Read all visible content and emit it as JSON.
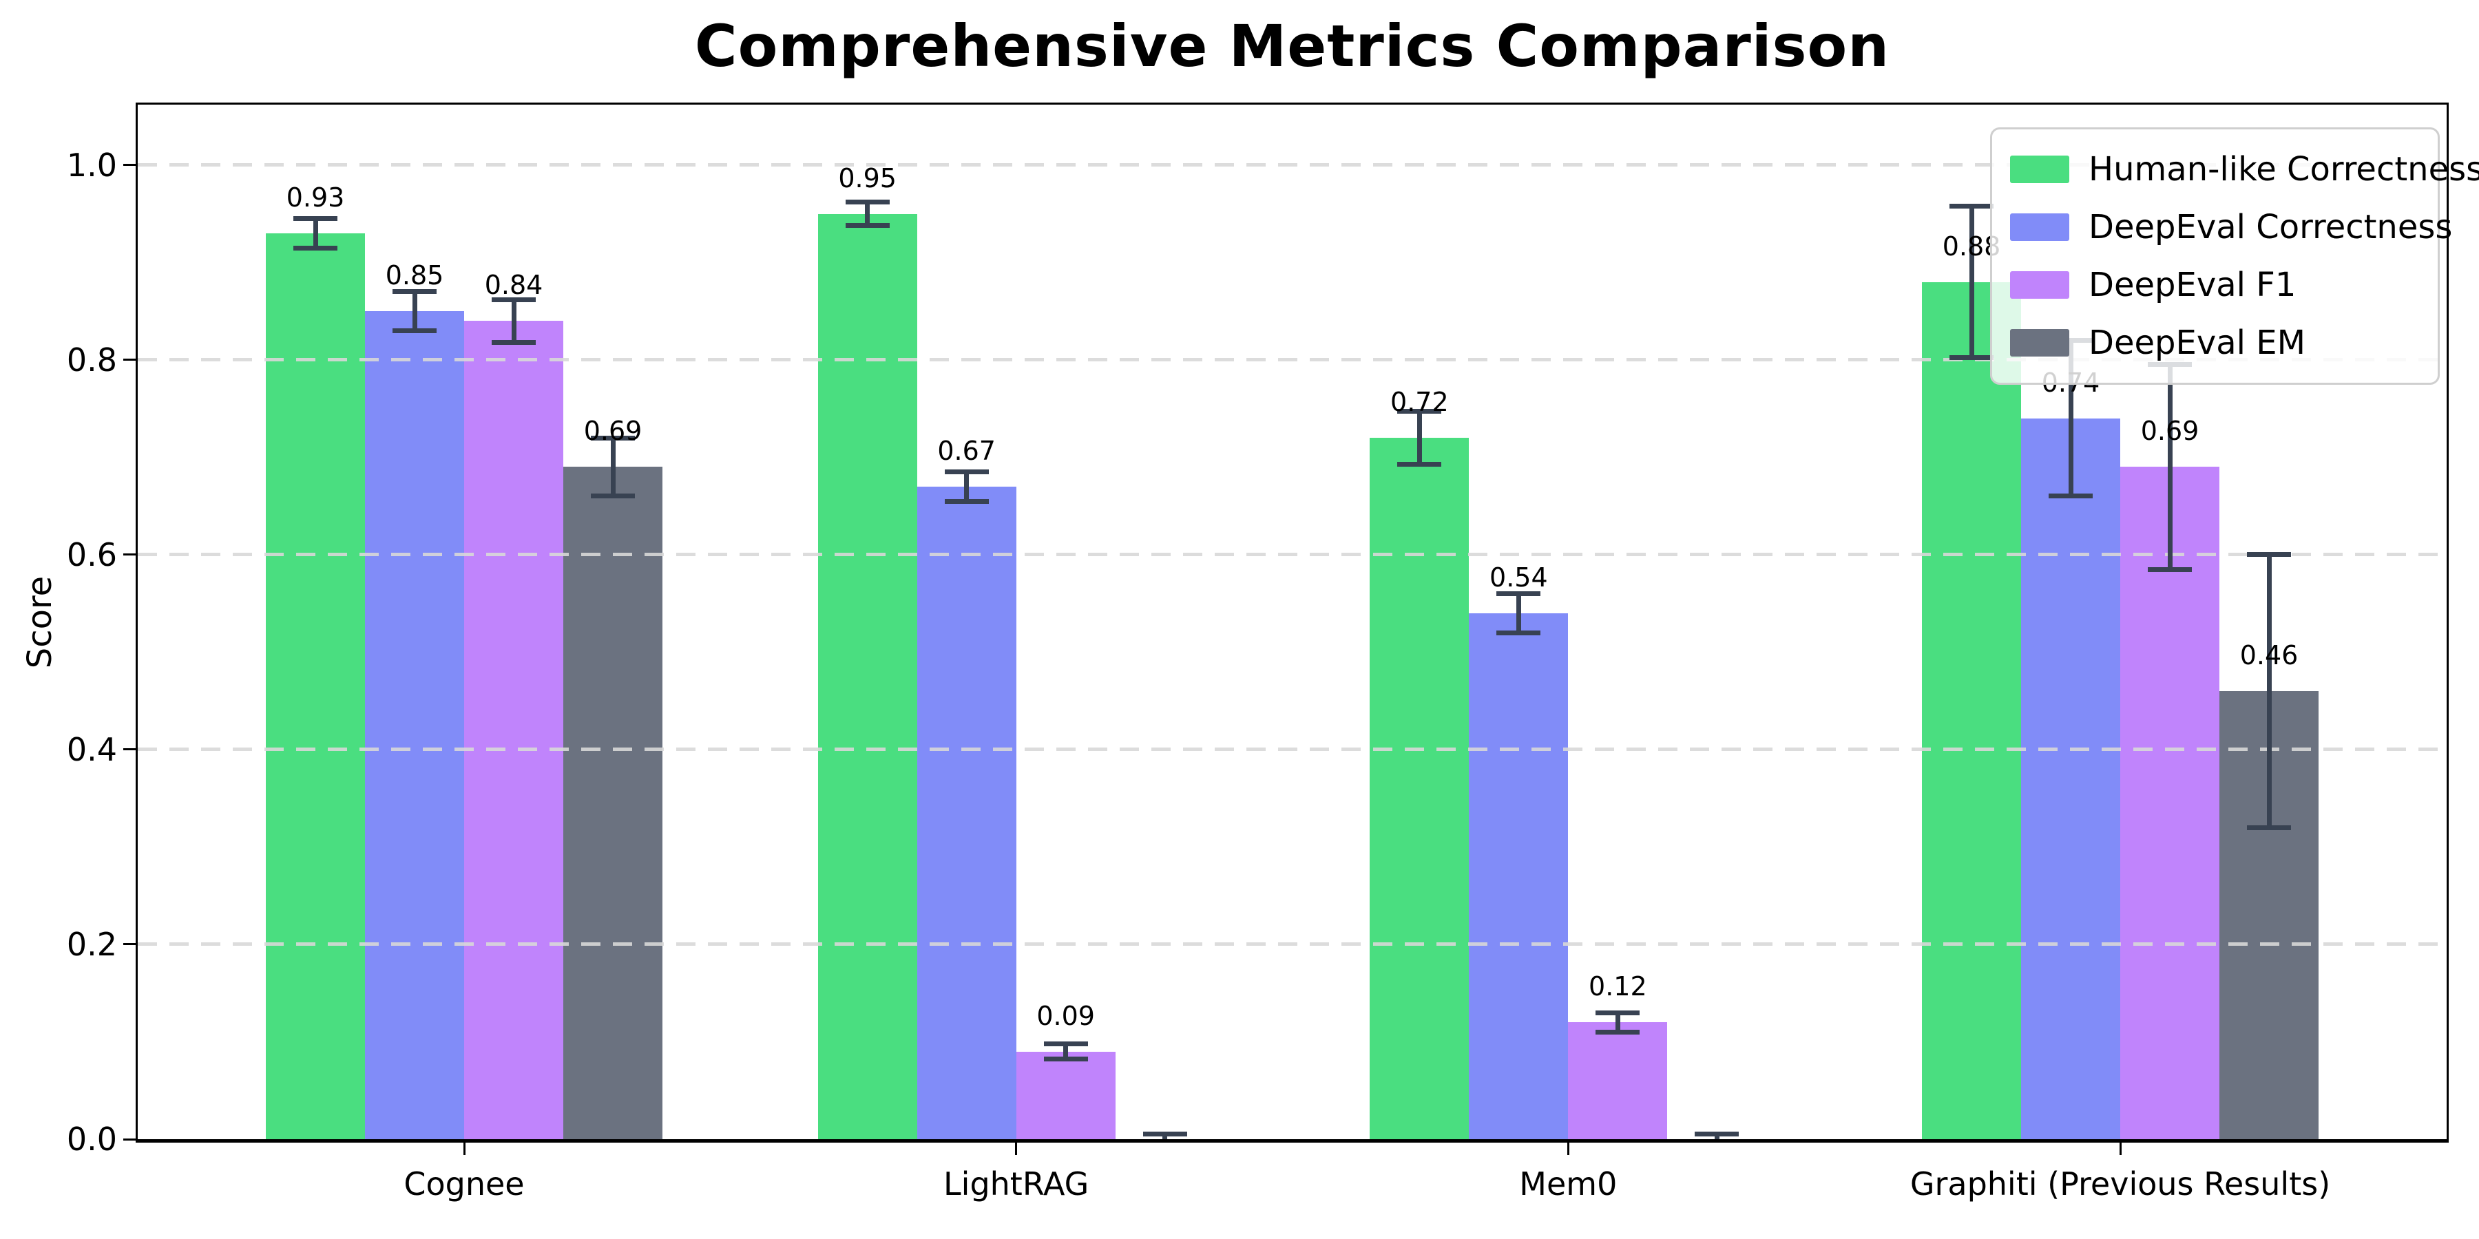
{
  "figure": {
    "title": "Comprehensive Metrics Comparison",
    "ylabel": "Score"
  },
  "chart_data": {
    "type": "bar",
    "title": "Comprehensive Metrics Comparison",
    "xlabel": "",
    "ylabel": "Score",
    "categories": [
      "Cognee",
      "LightRAG",
      "Mem0",
      "Graphiti (Previous Results)"
    ],
    "series": [
      {
        "name": "Human-like Correctness",
        "color": "#4ade80",
        "values": [
          0.93,
          0.95,
          0.72,
          0.88
        ],
        "errors": [
          0.015,
          0.012,
          0.027,
          0.078
        ],
        "labels": [
          "0.93",
          "0.95",
          "0.72",
          "0.88"
        ]
      },
      {
        "name": "DeepEval Correctness",
        "color": "#818cf8",
        "values": [
          0.85,
          0.67,
          0.54,
          0.74
        ],
        "errors": [
          0.02,
          0.015,
          0.02,
          0.08
        ],
        "labels": [
          "0.85",
          "0.67",
          "0.54",
          "0.74"
        ]
      },
      {
        "name": "DeepEval F1",
        "color": "#c084fc",
        "values": [
          0.84,
          0.09,
          0.12,
          0.69
        ],
        "errors": [
          0.022,
          0.008,
          0.01,
          0.105
        ],
        "labels": [
          "0.84",
          "0.09",
          "0.12",
          "0.69"
        ]
      },
      {
        "name": "DeepEval EM",
        "color": "#6b7280",
        "values": [
          0.69,
          0.0,
          0.0,
          0.46
        ],
        "errors": [
          0.03,
          0.005,
          0.005,
          0.14
        ],
        "labels": [
          "0.69",
          "",
          "",
          "0.46"
        ]
      }
    ],
    "ytick_values": [
      0.0,
      0.2,
      0.4,
      0.6,
      0.8,
      1.0
    ],
    "ytick_labels": [
      "0.0",
      "0.2",
      "0.4",
      "0.6",
      "0.8",
      "1.0"
    ],
    "ylim": [
      0,
      1.062
    ],
    "grid": {
      "axis": "y",
      "style": "dashed",
      "color": "#d8d8d8"
    },
    "legend": {
      "position": "upper right"
    },
    "error_bar_color": "#384252",
    "background_color": "#ffffff"
  }
}
